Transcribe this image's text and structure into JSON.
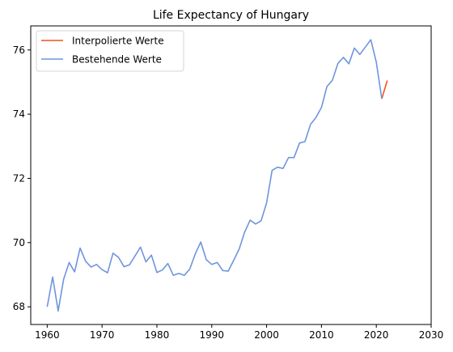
{
  "chart_data": {
    "type": "line",
    "title": "Life Expectancy of Hungary",
    "xlabel": "",
    "ylabel": "",
    "xlim": [
      1957,
      2030
    ],
    "ylim": [
      67.45,
      76.75
    ],
    "xticks": [
      1960,
      1970,
      1980,
      1990,
      2000,
      2010,
      2020,
      2030
    ],
    "yticks": [
      68,
      70,
      72,
      74,
      76
    ],
    "grid": false,
    "legend_position": "upper-left",
    "series": [
      {
        "name": "Interpolierte Werte",
        "color": "#f4511e",
        "x": [
          2021,
          2022
        ],
        "y": [
          74.48,
          75.05
        ]
      },
      {
        "name": "Bestehende Werte",
        "color": "#6f95dd",
        "x": [
          1960,
          1961,
          1962,
          1963,
          1964,
          1965,
          1966,
          1967,
          1968,
          1969,
          1970,
          1971,
          1972,
          1973,
          1974,
          1975,
          1976,
          1977,
          1978,
          1979,
          1980,
          1981,
          1982,
          1983,
          1984,
          1985,
          1986,
          1987,
          1988,
          1989,
          1990,
          1991,
          1992,
          1993,
          1994,
          1995,
          1996,
          1997,
          1998,
          1999,
          2000,
          2001,
          2002,
          2003,
          2004,
          2005,
          2006,
          2007,
          2008,
          2009,
          2010,
          2011,
          2012,
          2013,
          2014,
          2015,
          2016,
          2017,
          2018,
          2019,
          2020,
          2021
        ],
        "y": [
          68.0,
          68.93,
          67.87,
          68.86,
          69.38,
          69.09,
          69.83,
          69.42,
          69.24,
          69.32,
          69.16,
          69.06,
          69.67,
          69.54,
          69.25,
          69.31,
          69.58,
          69.86,
          69.4,
          69.61,
          69.07,
          69.15,
          69.35,
          68.98,
          69.04,
          68.98,
          69.18,
          69.65,
          70.02,
          69.47,
          69.32,
          69.38,
          69.13,
          69.11,
          69.45,
          69.8,
          70.33,
          70.7,
          70.58,
          70.68,
          71.24,
          72.25,
          72.35,
          72.31,
          72.65,
          72.65,
          73.1,
          73.15,
          73.68,
          73.9,
          74.21,
          74.86,
          75.06,
          75.58,
          75.77,
          75.57,
          76.06,
          75.86,
          76.09,
          76.32,
          75.62,
          74.48
        ]
      }
    ]
  }
}
